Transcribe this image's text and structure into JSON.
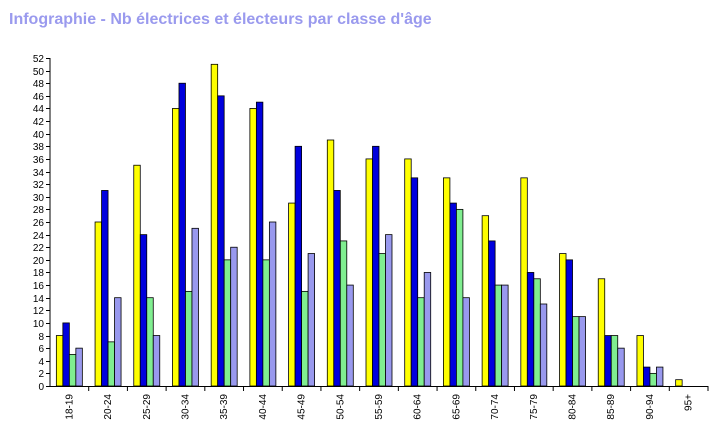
{
  "chart_data": {
    "type": "bar",
    "title": "Infographie - Nb électrices et électeurs par classe d'âge",
    "categories": [
      "18-19",
      "20-24",
      "25-29",
      "30-34",
      "35-39",
      "40-44",
      "45-49",
      "50-54",
      "55-59",
      "60-64",
      "65-69",
      "70-74",
      "75-79",
      "80-84",
      "85-89",
      "90-94",
      "95+"
    ],
    "series": [
      {
        "color": "#ffff00",
        "values": [
          8,
          26,
          35,
          44,
          51,
          44,
          29,
          39,
          36,
          36,
          33,
          27,
          33,
          21,
          17,
          8,
          1
        ]
      },
      {
        "color": "#0000dd",
        "values": [
          10,
          31,
          24,
          48,
          46,
          45,
          38,
          31,
          38,
          33,
          29,
          23,
          18,
          20,
          8,
          3,
          0
        ]
      },
      {
        "color": "#80ee90",
        "values": [
          5,
          7,
          14,
          15,
          20,
          20,
          15,
          23,
          21,
          14,
          28,
          16,
          17,
          11,
          8,
          2,
          0
        ]
      },
      {
        "color": "#9999ee",
        "values": [
          6,
          14,
          8,
          25,
          22,
          26,
          21,
          16,
          24,
          18,
          14,
          16,
          13,
          11,
          6,
          3,
          0
        ]
      }
    ],
    "ylim": [
      0,
      52
    ],
    "yticks": [
      0,
      2,
      4,
      6,
      8,
      10,
      12,
      14,
      16,
      18,
      20,
      22,
      24,
      26,
      28,
      30,
      32,
      34,
      36,
      38,
      40,
      42,
      44,
      46,
      48,
      50,
      52
    ],
    "grid": false,
    "legend": "none"
  }
}
